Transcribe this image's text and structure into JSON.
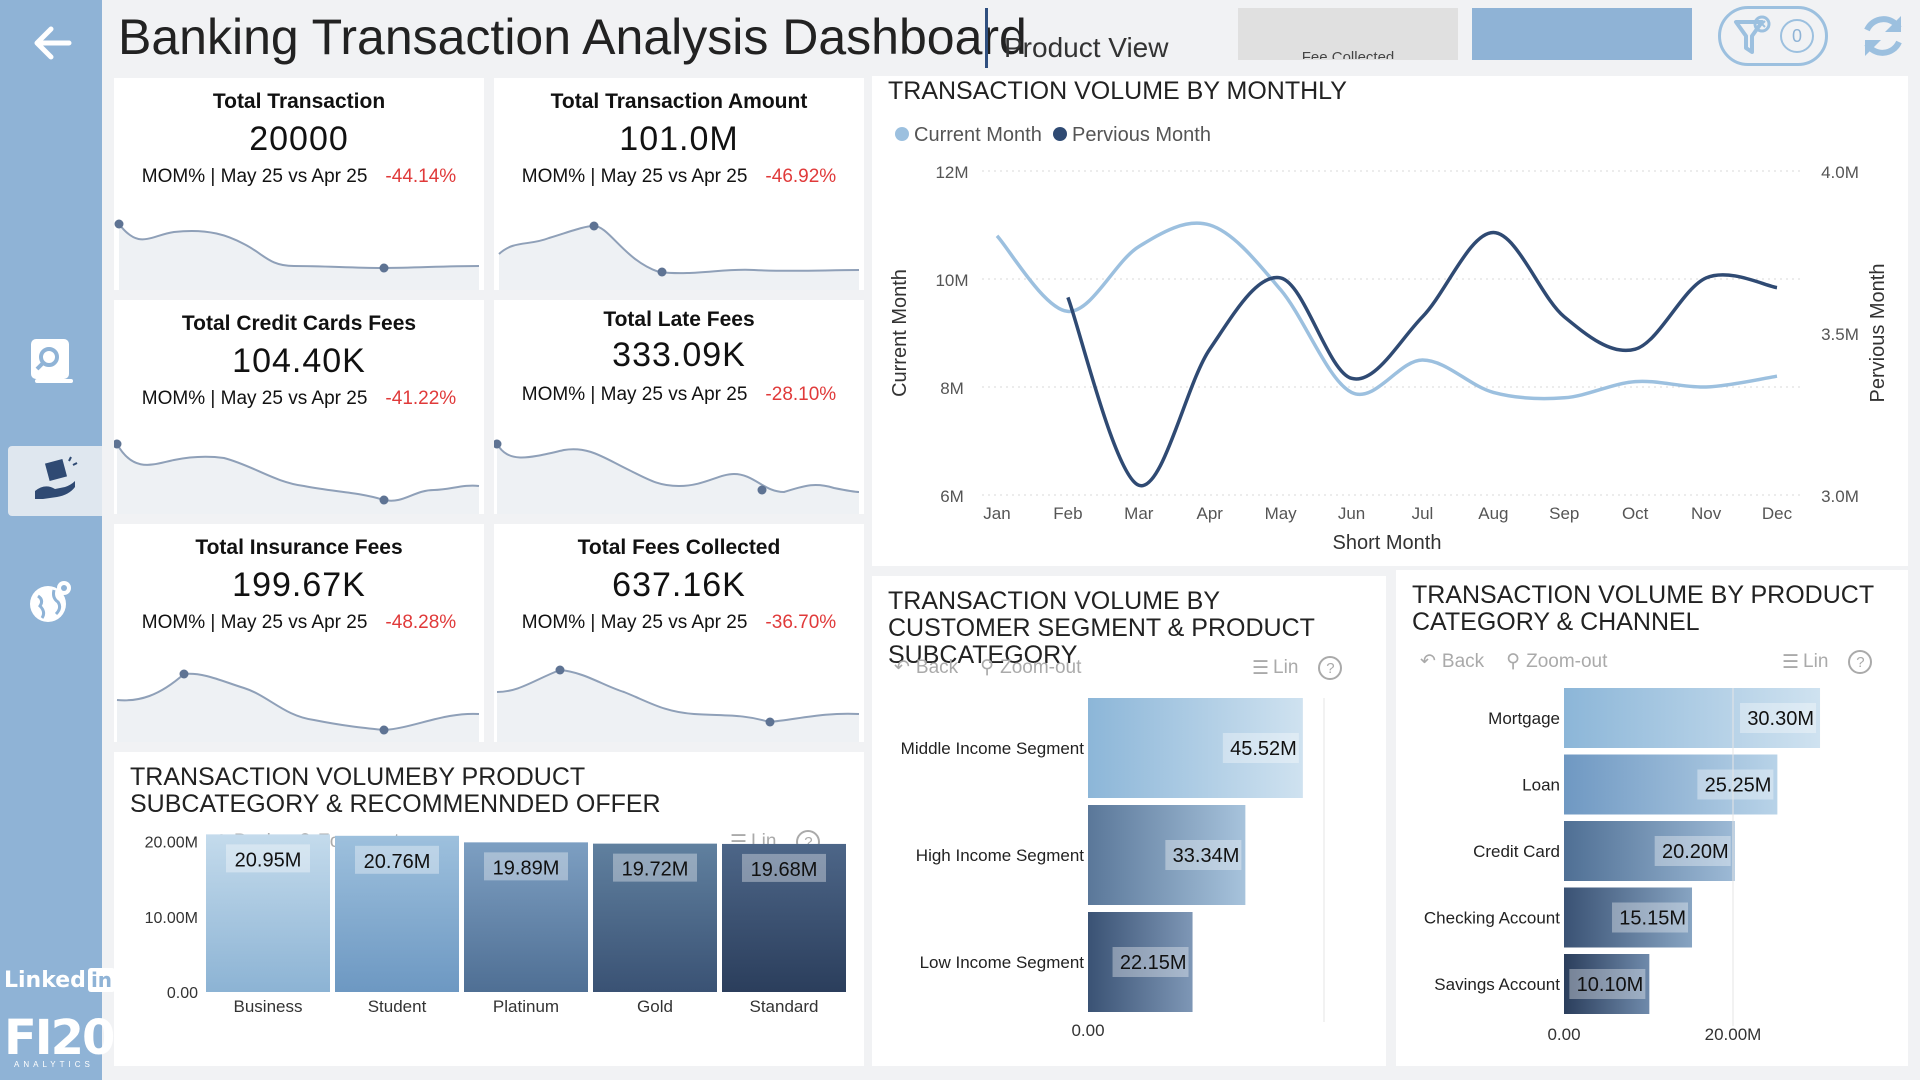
{
  "header": {
    "title": "Banking Transaction Analysis Dashboard",
    "subtitle": "Product View",
    "fee_button": "Fee Collected",
    "filter_count": "0"
  },
  "colors": {
    "sidebar": "#8fb3d6",
    "light_series": "#9cc0df",
    "dark_series": "#2f4a73",
    "negative": "#e03a3a"
  },
  "sidebar": {
    "linkedin": "Linked",
    "linkedin_in": "in",
    "brand": "FI20",
    "brand_sub": "ANALYTICS"
  },
  "kpis": [
    {
      "title": "Total Transaction",
      "value": "20000",
      "mom_label": "MOM% | May 25 vs Apr 25",
      "mom": "-44.14%"
    },
    {
      "title": "Total Transaction Amount",
      "value": "101.0M",
      "mom_label": "MOM% | May 25 vs Apr 25",
      "mom": "-46.92%"
    },
    {
      "title": "Total Credit Cards Fees",
      "value": "104.40K",
      "mom_label": "MOM% | May 25 vs Apr 25",
      "mom": "-41.22%"
    },
    {
      "title": "Total Late Fees",
      "value": "333.09K",
      "mom_label": "MOM% | May 25 vs Apr 25",
      "mom": "-28.10%"
    },
    {
      "title": "Total Insurance Fees",
      "value": "199.67K",
      "mom_label": "MOM% | May 25 vs Apr 25",
      "mom": "-48.28%"
    },
    {
      "title": "Total Fees Collected",
      "value": "637.16K",
      "mom_label": "MOM% | May 25 vs Apr 25",
      "mom": "-36.70%"
    }
  ],
  "toolbar": {
    "back": "Back",
    "zoom_out": "Zoom-out",
    "lin": "Lin",
    "help": "?"
  },
  "chart_data": [
    {
      "type": "line",
      "title": "TRANSACTION VOLUME BY MONTHLY",
      "xlabel": "Short Month",
      "ylabel": "Current Month",
      "y2label": "Pervious Month",
      "categories": [
        "Jan",
        "Feb",
        "Mar",
        "Apr",
        "May",
        "Jun",
        "Jul",
        "Aug",
        "Sep",
        "Oct",
        "Nov",
        "Dec"
      ],
      "ylim": [
        6000000,
        12000000
      ],
      "y_ticks": [
        "12M",
        "10M",
        "8M",
        "6M"
      ],
      "y2lim": [
        3000000,
        4000000
      ],
      "y2_ticks": [
        "4.0M",
        "3.5M",
        "3.0M"
      ],
      "legend_position": "top-left",
      "series": [
        {
          "name": "Current Month",
          "axis": "left",
          "color": "#9cc0df",
          "values": [
            10800000,
            9400000,
            10600000,
            11000000,
            9800000,
            7900000,
            8500000,
            7900000,
            7800000,
            8100000,
            8000000,
            8200000
          ]
        },
        {
          "name": "Pervious Month",
          "axis": "right",
          "color": "#2f4a73",
          "values": [
            null,
            3610000,
            3030000,
            3450000,
            3670000,
            3360000,
            3550000,
            3810000,
            3550000,
            3450000,
            3670000,
            3640000
          ]
        }
      ]
    },
    {
      "type": "bar",
      "title": "TRANSACTION VOLUMEBY PRODUCT SUBCATEGORY & RECOMMENNDED OFFER",
      "categories": [
        "Business",
        "Student",
        "Platinum",
        "Gold",
        "Standard"
      ],
      "values": [
        20950000,
        20760000,
        19890000,
        19720000,
        19680000
      ],
      "labels": [
        "20.95M",
        "20.76M",
        "19.89M",
        "19.72M",
        "19.68M"
      ],
      "ylim": [
        0,
        21000000
      ],
      "y_ticks": [
        {
          "value": 20000000,
          "label": "20.00M"
        },
        {
          "value": 10000000,
          "label": "10.00M"
        },
        {
          "value": 0,
          "label": "0.00"
        }
      ]
    },
    {
      "type": "bar",
      "orientation": "horizontal",
      "title": "TRANSACTION VOLUME BY CUSTOMER SEGMENT & PRODUCT SUBCATEGORY",
      "categories": [
        "Middle Income Segment",
        "High Income Segment",
        "Low Income Segment"
      ],
      "values": [
        45520000,
        33340000,
        22150000
      ],
      "labels": [
        "45.52M",
        "33.34M",
        "22.15M"
      ],
      "xlim": [
        0,
        50000000
      ],
      "x_ticks": [
        {
          "value": 0,
          "label": "0.00"
        }
      ]
    },
    {
      "type": "bar",
      "orientation": "horizontal",
      "title": "TRANSACTION VOLUME BY PRODUCT CATEGORY & CHANNEL",
      "categories": [
        "Mortgage",
        "Loan",
        "Credit Card",
        "Checking Account",
        "Savings Account"
      ],
      "values": [
        30300000,
        25250000,
        20200000,
        15150000,
        10100000
      ],
      "labels": [
        "30.30M",
        "25.25M",
        "20.20M",
        "15.15M",
        "10.10M"
      ],
      "xlim": [
        0,
        40000000
      ],
      "x_ticks": [
        {
          "value": 0,
          "label": "0.00"
        },
        {
          "value": 20000000,
          "label": "20.00M"
        }
      ]
    }
  ]
}
